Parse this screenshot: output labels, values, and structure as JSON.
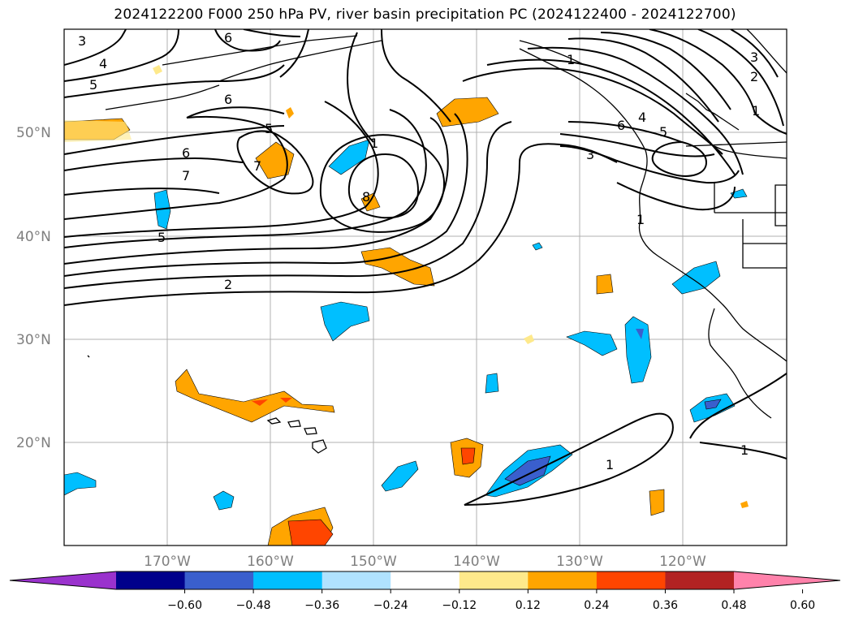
{
  "title": "2024122200 F000 250 hPa PV, river basin precipitation PC (2024122400 - 2024122700)",
  "lat_labels": [
    "20°N",
    "30°N",
    "40°N",
    "50°N"
  ],
  "lon_labels": [
    "170°W",
    "160°W",
    "150°W",
    "140°W",
    "130°W",
    "120°W"
  ],
  "colorbar": {
    "colors": [
      "#9a32cd",
      "#00008b",
      "#3a5fcd",
      "#00bfff",
      "#b0e2ff",
      "#ffffff",
      "#fee98b",
      "#ffa500",
      "#ff4500",
      "#b22222",
      "#ff82ab"
    ],
    "ticks": [
      "−0.60",
      "−0.48",
      "−0.36",
      "−0.24",
      "−0.12",
      "0.12",
      "0.24",
      "0.36",
      "0.48",
      "0.60"
    ]
  },
  "contour_labels": [
    "3",
    "6",
    "4",
    "5",
    "6",
    "5",
    "6",
    "7",
    "7",
    "1",
    "8",
    "5",
    "2",
    "1",
    "3",
    "2",
    "1",
    "4",
    "6",
    "5",
    "3",
    "1",
    "1",
    "1"
  ],
  "colors": {
    "grid": "#b0b0b0",
    "contour": "#000000",
    "coast": "#000000",
    "axis_label": "#7f7f7f"
  }
}
